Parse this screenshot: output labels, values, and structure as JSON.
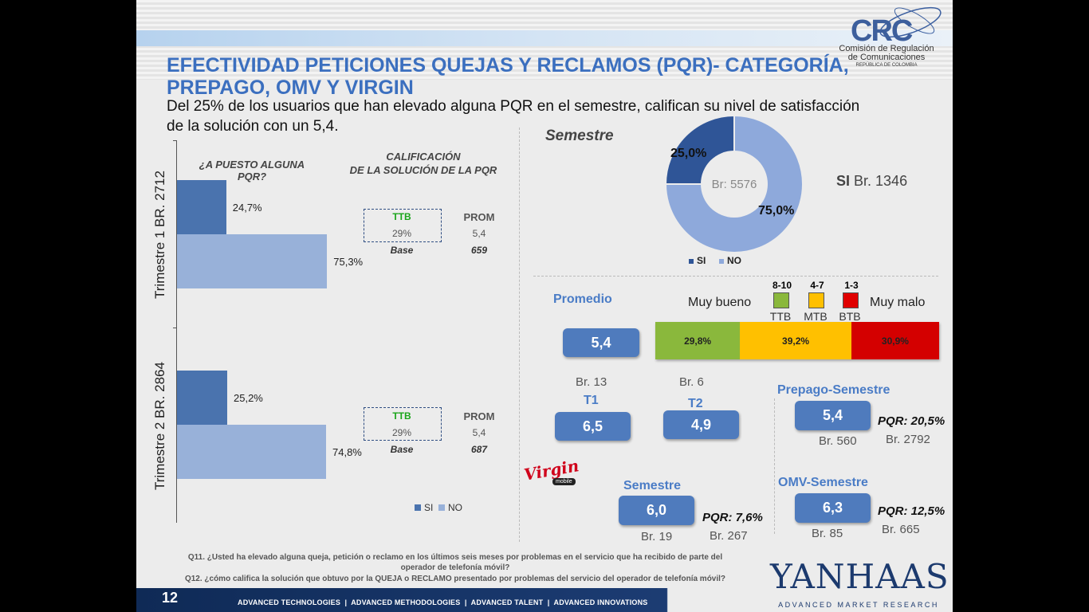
{
  "header": {
    "title": "EFECTIVIDAD PETICIONES QUEJAS Y RECLAMOS (PQR)- CATEGORÍA, PREPAGO, OMV Y VIRGIN",
    "subtitle": "Del 25% de los usuarios que han elevado alguna PQR en el semestre, califican su nivel de satisfacción de la solución con un 5,4.",
    "logo": {
      "abbr": "CRC",
      "line1": "Comisión de Regulación",
      "line2": "de Comunicaciones",
      "line3": "REPÚBLICA DE COLOMBIA"
    }
  },
  "left": {
    "q_header": "¿A PUESTO ALGUNA PQR?",
    "cal_header_1": "CALIFICACIÓN",
    "cal_header_2": "DE LA SOLUCIÓN DE LA PQR",
    "t1": {
      "label": "Trimestre 1 BR. 2712",
      "si_label": "24,7%",
      "no_label": "75,3%",
      "si": 24.7,
      "no": 75.3,
      "ttb_label": "TTB",
      "ttb": "29%",
      "prom_label": "PROM",
      "prom": "5,4",
      "base_label": "Base",
      "base": "659"
    },
    "t2": {
      "label": "Trimestre 2 BR. 2864",
      "si_label": "25,2%",
      "no_label": "74,8%",
      "si": 25.2,
      "no": 74.8,
      "ttb_label": "TTB",
      "ttb": "29%",
      "prom_label": "PROM",
      "prom": "5,4",
      "base_label": "Base",
      "base": "687"
    },
    "legend": {
      "si": "SI",
      "no": "NO"
    }
  },
  "chart_data": {
    "type": "pie",
    "title": "Semestre",
    "center_label": "Br: 5576",
    "slices": [
      {
        "name": "SI",
        "value": 25.0,
        "label": "25,0%",
        "color": "#2f5597"
      },
      {
        "name": "NO",
        "value": 75.0,
        "label": "75,0%",
        "color": "#8ea9db"
      }
    ],
    "legend_placement": "bottom"
  },
  "donut_side": {
    "si_bold": "SI",
    "br": "Br. 1346"
  },
  "scale": {
    "muy_bueno": "Muy bueno",
    "muy_malo": "Muy malo",
    "items": [
      {
        "range": "8-10",
        "code": "TTB",
        "color": "#8ab83c"
      },
      {
        "range": "4-7",
        "code": "MTB",
        "color": "#ffc000"
      },
      {
        "range": "1-3",
        "code": "BTB",
        "color": "#e00000"
      }
    ],
    "stack": [
      {
        "label": "29,8%",
        "value": 29.8,
        "color": "#8ab83c"
      },
      {
        "label": "39,2%",
        "value": 39.2,
        "color": "#ffc000"
      },
      {
        "label": "30,9%",
        "value": 30.9,
        "color": "#d40000"
      }
    ]
  },
  "promedio": {
    "label": "Promedio",
    "value": "5,4",
    "br": "Br. 13",
    "br2": "Br. 6"
  },
  "t1": {
    "label": "T1",
    "value": "6,5"
  },
  "t2": {
    "label": "T2",
    "value": "4,9"
  },
  "prepago": {
    "label": "Prepago-Semestre",
    "value": "5,4",
    "br": "Br. 560",
    "pqr": "PQR: 20,5%",
    "br2": "Br. 2792"
  },
  "virgin": {
    "logo_text": "Virgin",
    "logo_sub": "mobile",
    "label": "Semestre",
    "value": "6,0",
    "br": "Br. 19",
    "pqr": "PQR: 7,6%",
    "br2": "Br. 267"
  },
  "omv": {
    "label": "OMV-Semestre",
    "value": "6,3",
    "br": "Br. 85",
    "pqr": "PQR: 12,5%",
    "br2": "Br. 665"
  },
  "questions": {
    "q11a": "Q11. ¿Usted ha elevado alguna queja, petición o reclamo en los últimos seis meses por problemas en el servicio que ha recibido de parte del",
    "q11b": "operador de telefonía móvil?",
    "q12": "Q12. ¿cómo califica la solución que obtuvo por la QUEJA o RECLAMO presentado por problemas del servicio del operador de telefonía móvil?"
  },
  "footer": {
    "page": "12",
    "tagline": "ADVANCED TECHNOLOGIES  |  ADVANCED METHODOLOGIES  |  ADVANCED TALENT  |  ADVANCED INNOVATIONS",
    "brand": "YANHAAS",
    "brand_sub": "ADVANCED MARKET RESEARCH"
  }
}
